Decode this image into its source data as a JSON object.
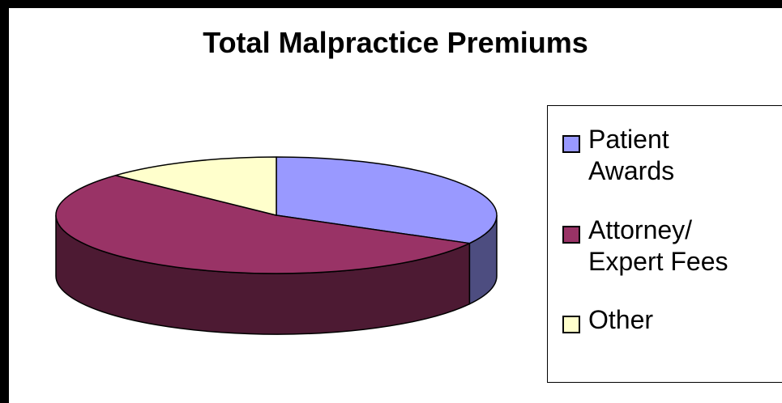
{
  "chart_data": {
    "type": "pie",
    "title": "Total Malpractice Premiums",
    "categories": [
      "Patient Awards",
      "Attorney/ Expert Fees",
      "Other"
    ],
    "values": [
      33,
      54,
      13
    ],
    "three_d": true,
    "legend_position": "right",
    "series": [
      {
        "values": [
          33,
          54,
          13
        ]
      }
    ]
  },
  "legend": {
    "items": [
      {
        "label": "Patient\nAwards",
        "color": "#9999ff"
      },
      {
        "label": "Attorney/\nExpert Fees",
        "color": "#993366"
      },
      {
        "label": "Other",
        "color": "#ffffcc"
      }
    ]
  },
  "colors": {
    "top": [
      "#9999ff",
      "#993366",
      "#ffffcc"
    ],
    "side": [
      "#4d4d80",
      "#4d1a33",
      "#808066"
    ]
  }
}
